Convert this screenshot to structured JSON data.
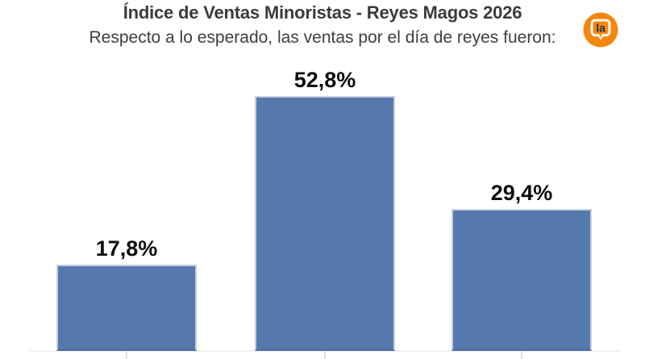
{
  "header": {
    "title": "Índice de Ventas Minoristas - Reyes Magos 2026",
    "subtitle": "Respecto a lo esperado, las ventas por el día de reyes fueron:"
  },
  "logo": {
    "text": "la",
    "circle_color": "#f5860d",
    "bubble_stroke_color": "#ffffff",
    "text_color": "#1c3552"
  },
  "chart_data": {
    "type": "bar",
    "title": "Índice de Ventas Minoristas - Reyes Magos 2026",
    "subtitle": "Respecto a lo esperado, las ventas por el día de reyes fueron:",
    "values": [
      17.8,
      52.8,
      29.4
    ],
    "value_labels": [
      "17,8%",
      "52,8%",
      "29,4%"
    ],
    "bar_color": "#5578ad",
    "bar_border_color": "#c6cedd",
    "axis_line_color": "#f0f0f0",
    "grid": false,
    "legend": "none",
    "x_tick_labels": [
      "",
      "",
      ""
    ]
  }
}
